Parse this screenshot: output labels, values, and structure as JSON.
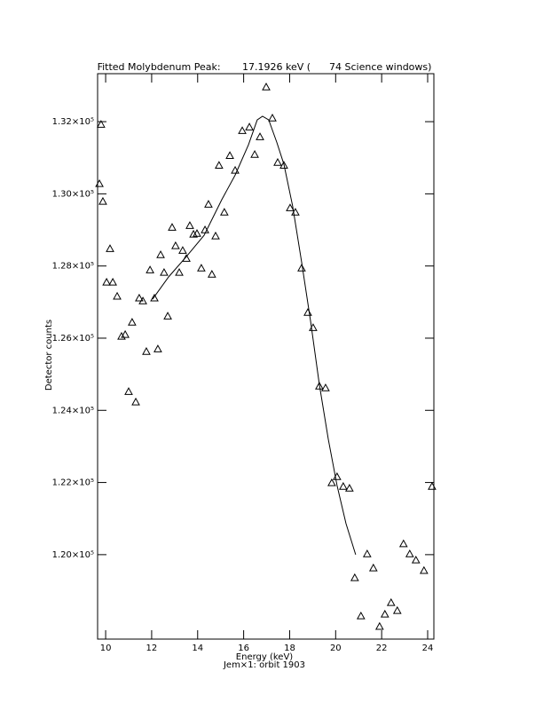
{
  "chart_data": {
    "type": "scatter",
    "title": "Fitted Molybdenum Peak:       17.1926 keV (      74 Science windows)",
    "x_label": "Energy (keV)",
    "y_label": "Detector counts",
    "subtitle": "Jem×1: orbit 1903",
    "color": "#000000",
    "marker": "triangle",
    "xlim": [
      9.65,
      24.27
    ],
    "ylim": [
      117660,
      133330
    ],
    "xticks": [
      10,
      12,
      14,
      16,
      18,
      20,
      22,
      24
    ],
    "yticks": [
      {
        "value": 120000,
        "label": "1.20×10⁵"
      },
      {
        "value": 122000,
        "label": "1.22×10⁵"
      },
      {
        "value": 124000,
        "label": "1.24×10⁵"
      },
      {
        "value": 126000,
        "label": "1.26×10⁵"
      },
      {
        "value": 128000,
        "label": "1.28×10⁵"
      },
      {
        "value": 130000,
        "label": "1.30×10⁵"
      },
      {
        "value": 132000,
        "label": "1.32×10⁵"
      }
    ],
    "x": [
      9.73,
      9.8,
      9.88,
      10.04,
      10.19,
      10.31,
      10.5,
      10.69,
      10.85,
      11.0,
      11.15,
      11.31,
      11.46,
      11.62,
      11.77,
      11.93,
      12.12,
      12.27,
      12.39,
      12.54,
      12.7,
      12.89,
      13.04,
      13.2,
      13.35,
      13.51,
      13.66,
      13.82,
      13.97,
      14.16,
      14.32,
      14.47,
      14.62,
      14.78,
      14.93,
      15.16,
      15.4,
      15.63,
      15.94,
      16.25,
      16.48,
      16.71,
      16.98,
      17.25,
      17.48,
      17.75,
      18.02,
      18.25,
      18.52,
      18.79,
      19.02,
      19.29,
      19.56,
      19.83,
      20.06,
      20.33,
      20.6,
      20.83,
      21.1,
      21.37,
      21.64,
      21.91,
      22.14,
      22.41,
      22.68,
      22.95,
      23.22,
      23.49,
      23.84,
      24.19
    ],
    "values": [
      130280,
      131925,
      129790,
      127550,
      128480,
      127550,
      127160,
      126050,
      126100,
      124520,
      126440,
      124230,
      127110,
      127030,
      125630,
      127890,
      127110,
      125700,
      128310,
      127820,
      126610,
      129070,
      128560,
      127820,
      128430,
      128210,
      129120,
      128880,
      128900,
      127940,
      129000,
      129710,
      127770,
      128830,
      130790,
      129490,
      131060,
      130650,
      131750,
      131850,
      131090,
      131580,
      132960,
      132100,
      130870,
      130790,
      129610,
      129490,
      127940,
      126710,
      126290,
      124670,
      124620,
      121990,
      122160,
      121890,
      121840,
      119360,
      118300,
      120020,
      119630,
      118010,
      118350,
      118670,
      118450,
      120300,
      120020,
      119850,
      119560,
      121890
    ],
    "fit": {
      "x": [
        12.04,
        12.74,
        13.51,
        14.28,
        15.05,
        15.63,
        16.21,
        16.59,
        16.82,
        17.09,
        17.44,
        17.75,
        18.13,
        18.52,
        18.91,
        19.29,
        19.68,
        20.06,
        20.45,
        20.87
      ],
      "values": [
        127080,
        127700,
        128260,
        128850,
        129840,
        130520,
        131360,
        132050,
        132150,
        132050,
        131430,
        130820,
        129660,
        128110,
        126470,
        124720,
        123200,
        121920,
        120860,
        120000
      ]
    }
  }
}
